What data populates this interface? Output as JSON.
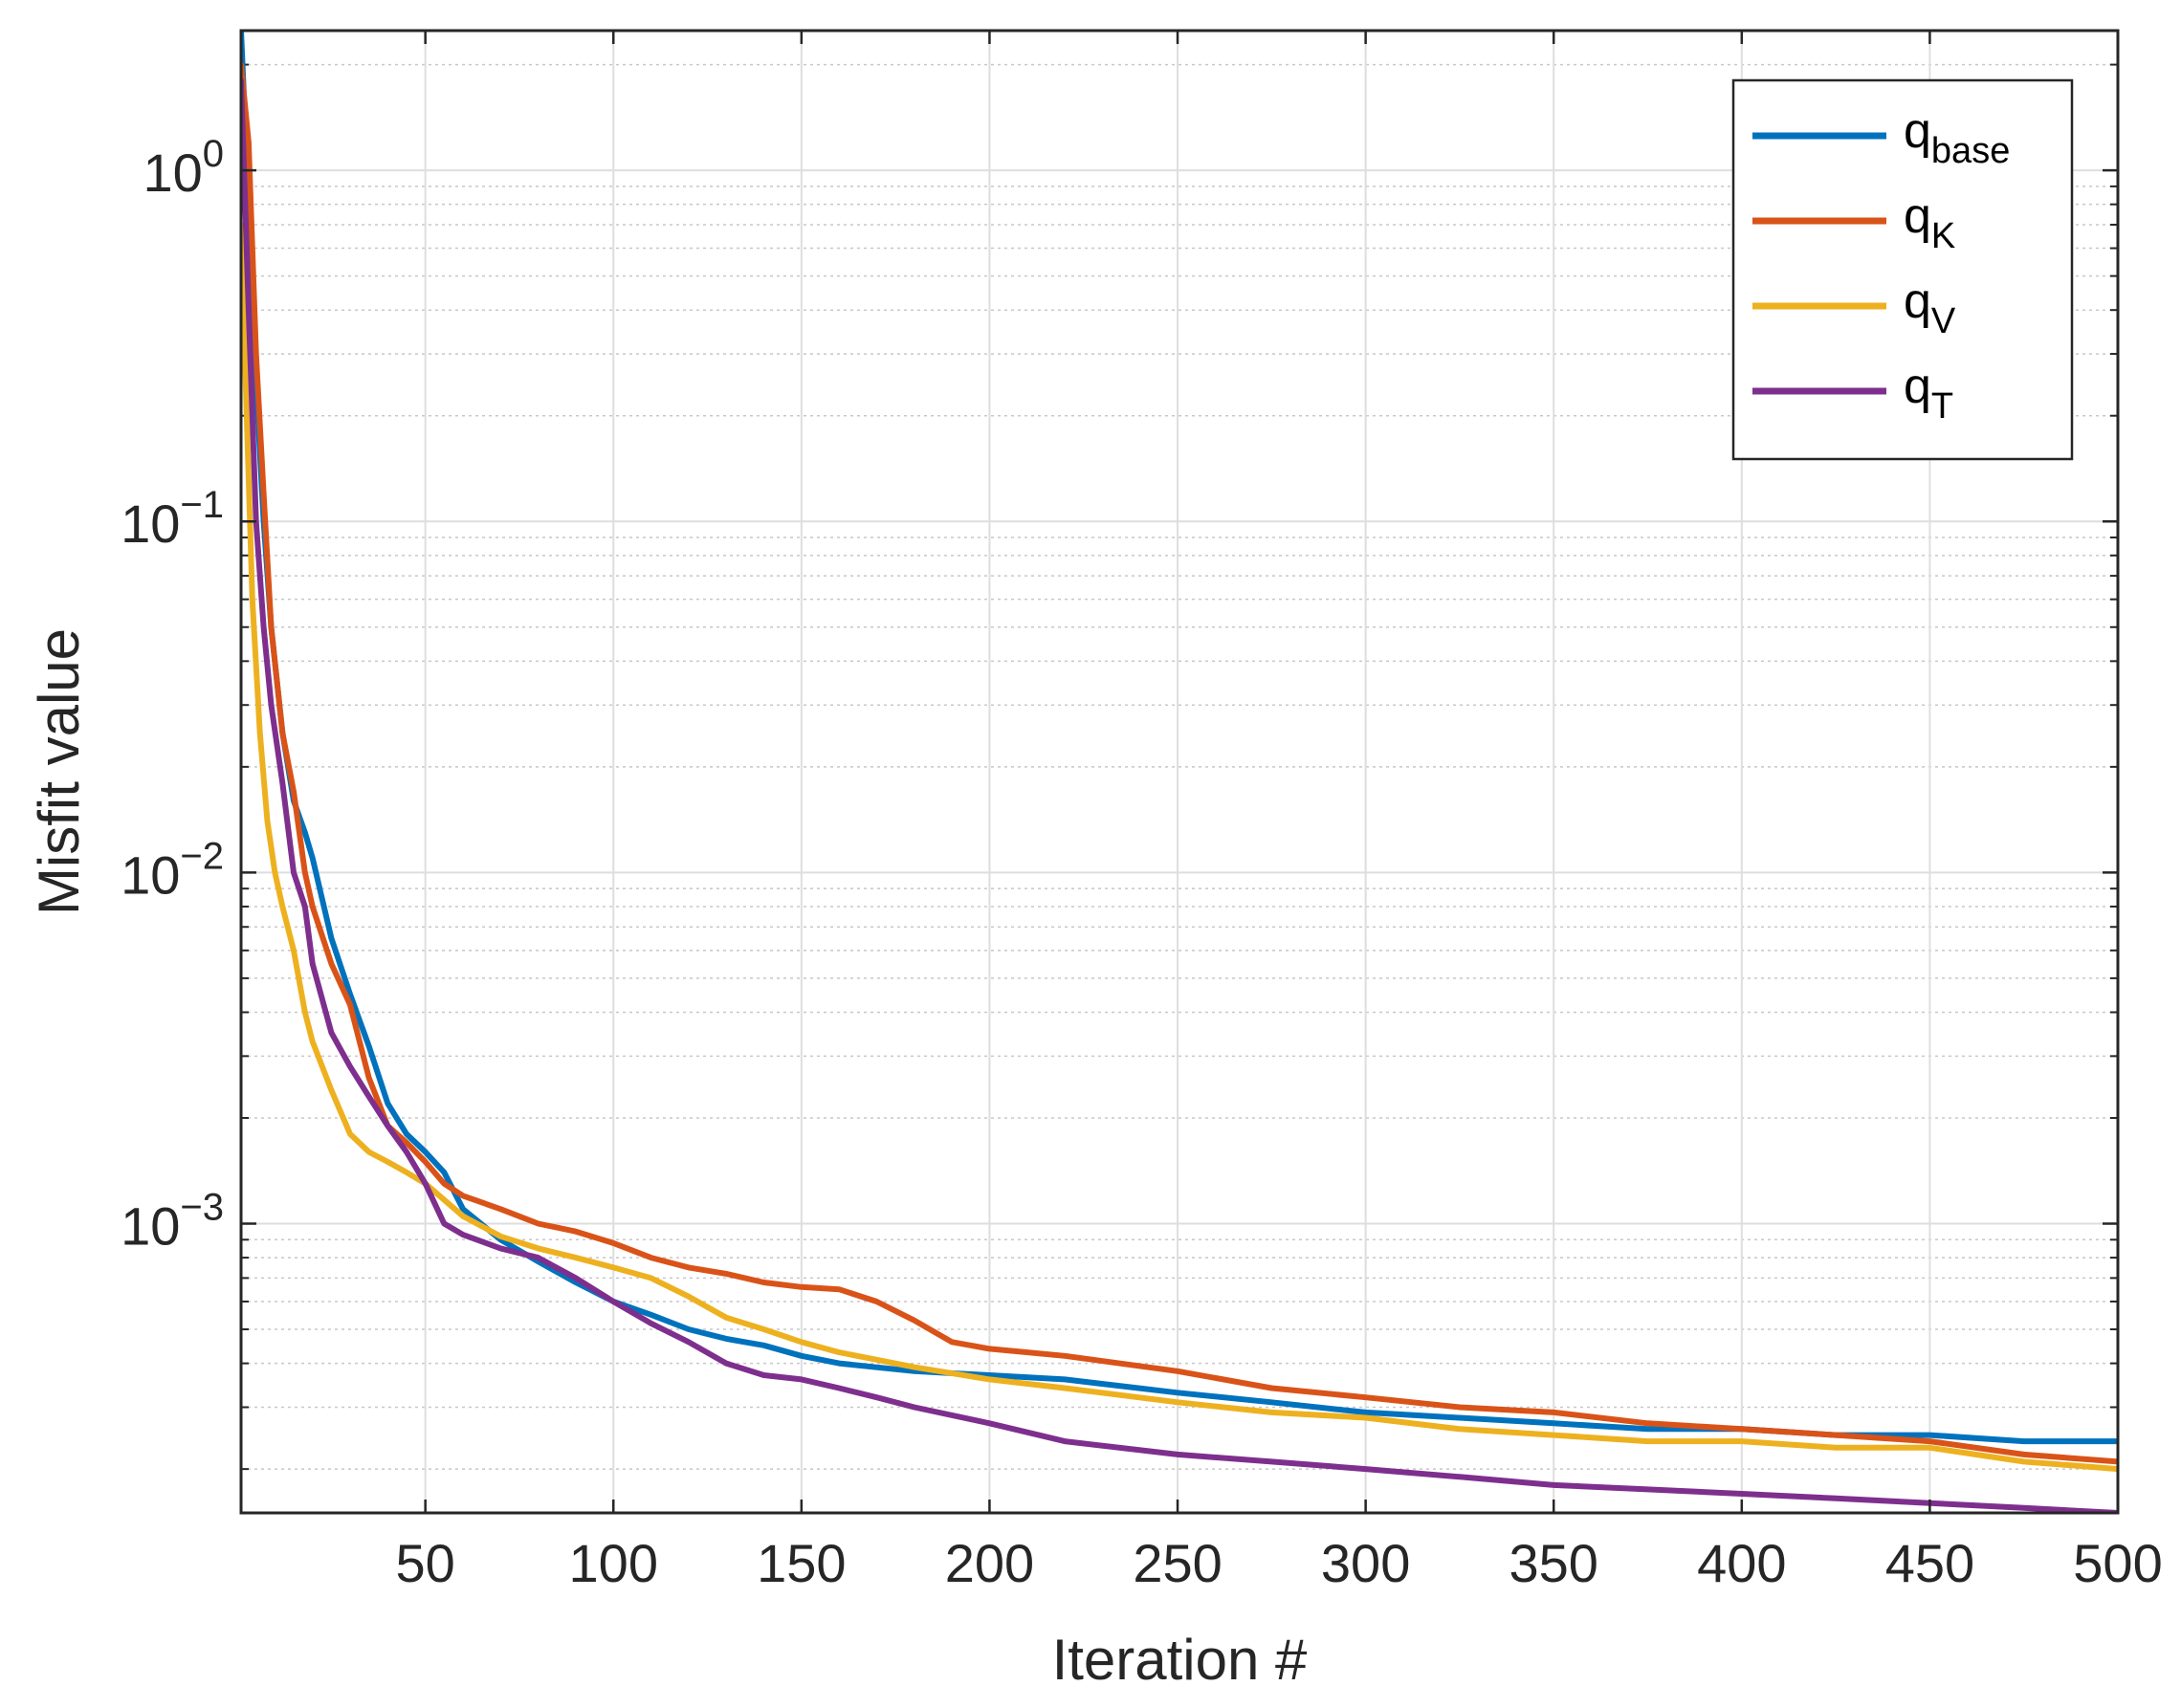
{
  "chart_data": {
    "type": "line",
    "xlabel": "Iteration #",
    "ylabel": "Misfit value",
    "xlim": [
      1,
      500
    ],
    "ylim": [
      0.00015,
      2.5
    ],
    "yscale": "log",
    "grid": true,
    "legend_position": "top-right",
    "x_ticks": [
      50,
      100,
      150,
      200,
      250,
      300,
      350,
      400,
      450,
      500
    ],
    "x_tick_labels": [
      "50",
      "100",
      "150",
      "200",
      "250",
      "300",
      "350",
      "400",
      "450",
      "500"
    ],
    "y_ticks": [
      {
        "value": 1,
        "base": "10",
        "exp": "0"
      },
      {
        "value": 0.1,
        "base": "10",
        "exp": "−1"
      },
      {
        "value": 0.01,
        "base": "10",
        "exp": "−2"
      },
      {
        "value": 0.001,
        "base": "10",
        "exp": "−3"
      }
    ],
    "series": [
      {
        "name": "q",
        "sub": "base",
        "color": "#0072BD",
        "x": [
          1,
          3,
          5,
          7,
          9,
          12,
          15,
          18,
          20,
          25,
          30,
          35,
          40,
          45,
          50,
          55,
          60,
          70,
          80,
          90,
          100,
          110,
          120,
          130,
          140,
          150,
          160,
          180,
          200,
          220,
          250,
          275,
          300,
          325,
          350,
          375,
          400,
          425,
          450,
          475,
          500
        ],
        "y": [
          2.5,
          0.8,
          0.25,
          0.1,
          0.05,
          0.025,
          0.016,
          0.013,
          0.011,
          0.0065,
          0.0045,
          0.0032,
          0.0022,
          0.0018,
          0.0016,
          0.0014,
          0.0011,
          0.0009,
          0.00078,
          0.00068,
          0.0006,
          0.00055,
          0.0005,
          0.00047,
          0.00045,
          0.00042,
          0.0004,
          0.00038,
          0.00037,
          0.00036,
          0.00033,
          0.00031,
          0.00029,
          0.00028,
          0.00027,
          0.00026,
          0.00026,
          0.00025,
          0.00025,
          0.00024,
          0.00024
        ]
      },
      {
        "name": "q",
        "sub": "K",
        "color": "#D95319",
        "x": [
          1,
          3,
          5,
          7,
          9,
          12,
          15,
          18,
          20,
          25,
          30,
          35,
          40,
          45,
          50,
          55,
          60,
          70,
          80,
          90,
          100,
          110,
          120,
          130,
          140,
          150,
          160,
          170,
          180,
          190,
          200,
          220,
          250,
          275,
          300,
          325,
          350,
          375,
          400,
          425,
          450,
          475,
          500
        ],
        "y": [
          2.0,
          1.2,
          0.3,
          0.12,
          0.05,
          0.025,
          0.017,
          0.01,
          0.008,
          0.0055,
          0.0042,
          0.0026,
          0.0019,
          0.0017,
          0.0015,
          0.0013,
          0.0012,
          0.0011,
          0.001,
          0.00095,
          0.00088,
          0.0008,
          0.00075,
          0.00072,
          0.00068,
          0.00066,
          0.00065,
          0.0006,
          0.00053,
          0.00046,
          0.00044,
          0.00042,
          0.00038,
          0.00034,
          0.00032,
          0.0003,
          0.00029,
          0.00027,
          0.00026,
          0.00025,
          0.00024,
          0.00022,
          0.00021
        ]
      },
      {
        "name": "q",
        "sub": "V",
        "color": "#EDB120",
        "x": [
          1,
          2,
          4,
          6,
          8,
          10,
          12,
          15,
          18,
          20,
          25,
          30,
          35,
          40,
          45,
          50,
          60,
          70,
          80,
          90,
          100,
          110,
          120,
          130,
          140,
          150,
          160,
          180,
          200,
          220,
          250,
          275,
          300,
          325,
          350,
          375,
          400,
          425,
          450,
          475,
          500
        ],
        "y": [
          0.7,
          0.3,
          0.06,
          0.025,
          0.014,
          0.01,
          0.008,
          0.006,
          0.004,
          0.0033,
          0.0024,
          0.0018,
          0.0016,
          0.0015,
          0.0014,
          0.0013,
          0.00105,
          0.00092,
          0.00085,
          0.0008,
          0.00075,
          0.0007,
          0.00062,
          0.00054,
          0.0005,
          0.00046,
          0.00043,
          0.00039,
          0.00036,
          0.00034,
          0.00031,
          0.00029,
          0.00028,
          0.00026,
          0.00025,
          0.00024,
          0.00024,
          0.00023,
          0.00023,
          0.00021,
          0.0002
        ]
      },
      {
        "name": "q",
        "sub": "T",
        "color": "#7E2F8E",
        "x": [
          1,
          3,
          5,
          7,
          9,
          12,
          15,
          18,
          20,
          25,
          30,
          35,
          40,
          45,
          50,
          55,
          60,
          70,
          80,
          90,
          100,
          110,
          120,
          130,
          140,
          150,
          160,
          170,
          180,
          200,
          220,
          250,
          275,
          300,
          325,
          350,
          375,
          400,
          425,
          450,
          475,
          500
        ],
        "y": [
          1.8,
          0.4,
          0.1,
          0.05,
          0.03,
          0.018,
          0.01,
          0.008,
          0.0055,
          0.0035,
          0.0028,
          0.0023,
          0.0019,
          0.0016,
          0.0013,
          0.001,
          0.00093,
          0.00085,
          0.0008,
          0.0007,
          0.0006,
          0.00052,
          0.00046,
          0.0004,
          0.00037,
          0.00036,
          0.00034,
          0.00032,
          0.0003,
          0.00027,
          0.00024,
          0.00022,
          0.00021,
          0.0002,
          0.00019,
          0.00018,
          0.000175,
          0.00017,
          0.000165,
          0.00016,
          0.000155,
          0.00015
        ]
      }
    ]
  }
}
